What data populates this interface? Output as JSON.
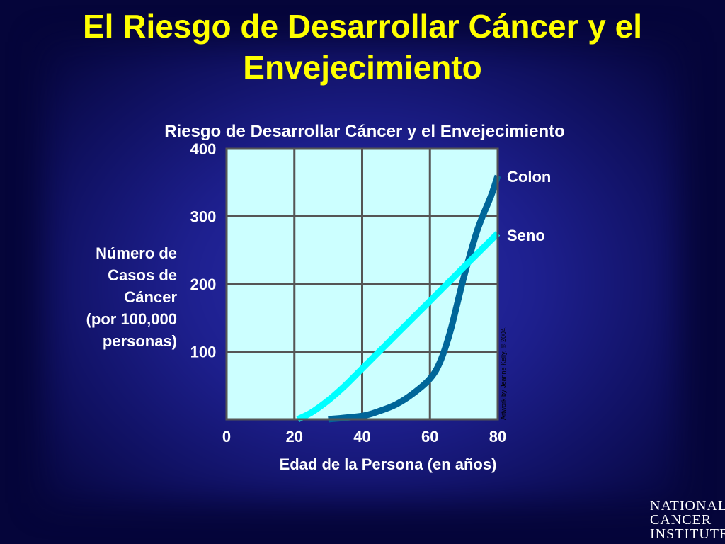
{
  "slide": {
    "title_line1": "El Riesgo de Desarrollar Cáncer y el",
    "title_line2": "Envejecimiento"
  },
  "colors": {
    "background": "#1e2090",
    "title": "#ffff00",
    "plot_area": "#ccffff",
    "grid": "#555555",
    "colon": "#006699",
    "seno": "#00ffff"
  },
  "chart_data": {
    "type": "line",
    "title": "Riesgo de Desarrollar Cáncer y el Envejecimiento",
    "xlabel": "Edad de la Persona (en años)",
    "ylabel_lines": [
      "Número de",
      "Casos de",
      "Cáncer",
      "(por 100,000",
      "personas)"
    ],
    "xlim": [
      0,
      80
    ],
    "ylim": [
      0,
      400
    ],
    "x_ticks": [
      "0",
      "20",
      "40",
      "60",
      "80"
    ],
    "y_ticks": [
      "100",
      "200",
      "300",
      "400"
    ],
    "grid": true,
    "credit": "Artwork by Jeanne Kelly. © 2004.",
    "series": [
      {
        "name": "Colon",
        "x": [
          30,
          40,
          45,
          50,
          55,
          60,
          63,
          66,
          70,
          74,
          78,
          80
        ],
        "y": [
          0,
          5,
          12,
          22,
          38,
          60,
          85,
          130,
          210,
          280,
          330,
          360
        ]
      },
      {
        "name": "Seno",
        "x": [
          21,
          25,
          30,
          35,
          40,
          45,
          50,
          55,
          60,
          65,
          70,
          75,
          80
        ],
        "y": [
          0,
          10,
          28,
          50,
          75,
          100,
          125,
          150,
          175,
          200,
          225,
          250,
          275
        ]
      }
    ]
  },
  "logo": {
    "line1": "NATIONAL",
    "line2": "CANCER",
    "line3": "INSTITUTE"
  }
}
